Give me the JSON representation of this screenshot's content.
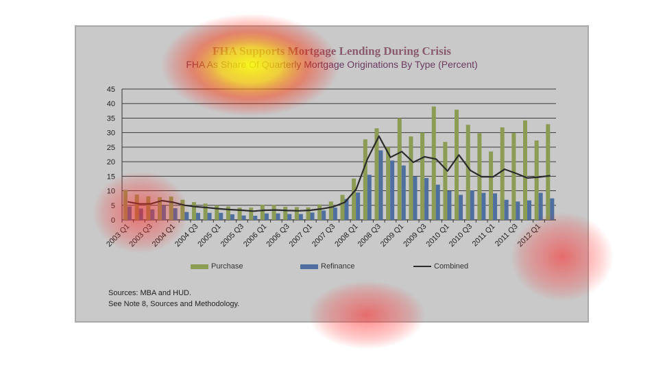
{
  "chart_data": {
    "type": "bar",
    "title": "FHA Supports Mortgage Lending During Crisis",
    "subtitle": "FHA As Share Of Quarterly Mortgage Originations By Type (Percent)",
    "ylim": [
      0,
      45
    ],
    "yticks": [
      0,
      5,
      10,
      15,
      20,
      25,
      30,
      35,
      40,
      45
    ],
    "grid": true,
    "legend_position": "bottom",
    "categories": [
      "2003 Q1",
      "2003 Q2",
      "2003 Q3",
      "2003 Q4",
      "2004 Q1",
      "2004 Q2",
      "2004 Q3",
      "2004 Q4",
      "2005 Q1",
      "2005 Q2",
      "2005 Q3",
      "2005 Q4",
      "2006 Q1",
      "2006 Q2",
      "2006 Q3",
      "2006 Q4",
      "2007 Q1",
      "2007 Q2",
      "2007 Q3",
      "2007 Q4",
      "2008 Q1",
      "2008 Q2",
      "2008 Q3",
      "2008 Q4",
      "2009 Q1",
      "2009 Q2",
      "2009 Q3",
      "2009 Q4",
      "2010 Q1",
      "2010 Q2",
      "2010 Q3",
      "2010 Q4",
      "2011 Q1",
      "2011 Q2",
      "2011 Q3",
      "2011 Q4",
      "2012 Q1",
      "2012 Q2"
    ],
    "tick_labels": [
      "2003 Q1",
      "2003 Q3",
      "2004 Q1",
      "2004 Q3",
      "2005 Q1",
      "2005 Q3",
      "2006 Q1",
      "2006 Q3",
      "2007 Q1",
      "2007 Q3",
      "2008 Q1",
      "2008 Q3",
      "2009 Q1",
      "2009 Q3",
      "2010 Q1",
      "2010 Q3",
      "2011 Q1",
      "2011 Q3",
      "2012 Q1"
    ],
    "series": [
      {
        "name": "Purchase",
        "type": "bar",
        "color": "#8c9c55",
        "values": [
          10.3,
          8.7,
          8.1,
          7.8,
          8.0,
          6.9,
          6.1,
          5.6,
          5.0,
          4.6,
          4.2,
          4.2,
          5.2,
          5.1,
          4.5,
          4.4,
          4.3,
          5.3,
          6.3,
          8.6,
          14.2,
          27.7,
          31.5,
          25.0,
          35.0,
          28.7,
          30.0,
          39.0,
          26.8,
          37.9,
          32.7,
          29.8,
          23.5,
          31.8,
          29.9,
          34.2,
          27.3,
          32.9
        ]
      },
      {
        "name": "Refinance",
        "type": "bar",
        "color": "#4f6f9f",
        "values": [
          4.6,
          3.9,
          3.6,
          4.9,
          4.0,
          2.7,
          2.4,
          2.4,
          2.4,
          1.9,
          1.5,
          1.4,
          2.2,
          2.2,
          2.0,
          2.0,
          2.5,
          3.2,
          4.2,
          7.2,
          9.4,
          15.5,
          23.9,
          20.4,
          18.7,
          14.9,
          14.4,
          12.1,
          9.9,
          8.6,
          10.1,
          9.3,
          9.1,
          6.9,
          6.3,
          6.7,
          9.3,
          7.4
        ]
      },
      {
        "name": "Combined",
        "type": "line",
        "color": "#2b2b2b",
        "values": [
          6.2,
          5.5,
          5.5,
          6.6,
          6.0,
          5.0,
          4.5,
          4.2,
          3.8,
          3.5,
          3.3,
          3.0,
          3.3,
          3.4,
          3.2,
          3.1,
          3.3,
          3.8,
          4.5,
          6.0,
          10.5,
          21.0,
          28.8,
          21.5,
          23.5,
          19.8,
          21.7,
          20.9,
          16.8,
          22.3,
          17.0,
          14.8,
          14.8,
          17.4,
          16.0,
          14.4,
          14.7,
          15.2
        ]
      }
    ]
  },
  "sources_line1": "Sources:  MBA and HUD.",
  "sources_line2": "See Note 8, Sources and Methodology."
}
